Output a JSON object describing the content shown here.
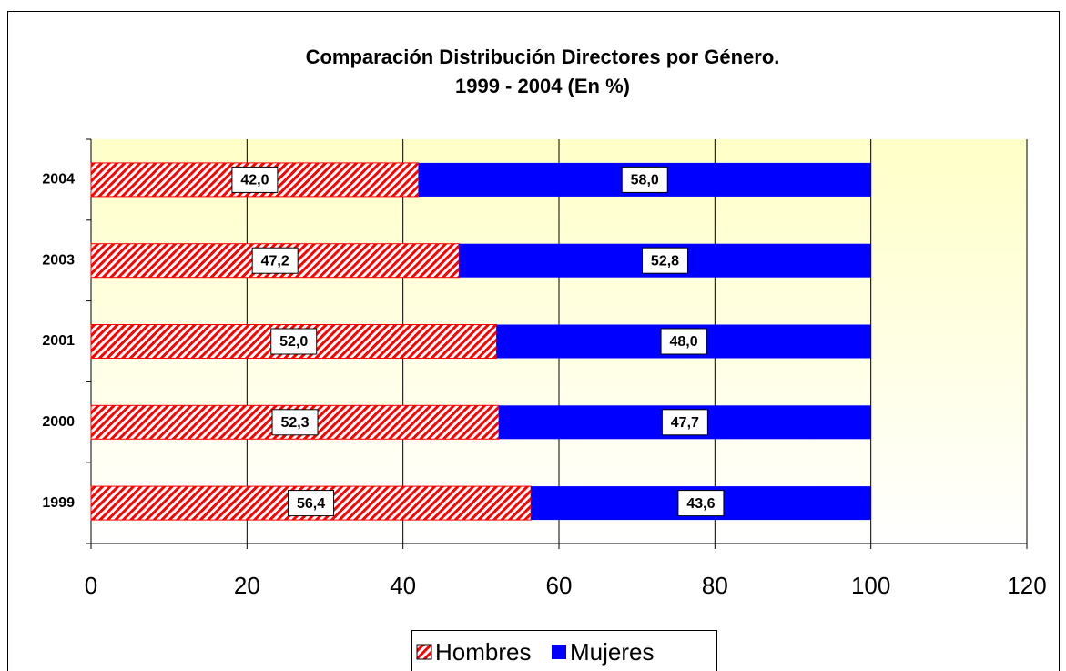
{
  "chart_data": {
    "type": "stacked_barh",
    "title": [
      "Comparación Distribución Directores por Género.",
      "1999 -  2004 (En %)"
    ],
    "categories": [
      "1999",
      "2000",
      "2001",
      "2003",
      "2004"
    ],
    "series": [
      {
        "name": "Hombres",
        "color": "#ff0000",
        "hatch": true,
        "values": [
          56.4,
          52.3,
          52.0,
          47.2,
          42.0
        ],
        "value_labels": [
          "56,4",
          "52,3",
          "52,0",
          "47,2",
          "42,0"
        ]
      },
      {
        "name": "Mujeres",
        "color": "#0000ff",
        "hatch": false,
        "values": [
          43.6,
          47.7,
          48.0,
          52.8,
          58.0
        ],
        "value_labels": [
          "43,6",
          "47,7",
          "48,0",
          "52,8",
          "58,0"
        ]
      }
    ],
    "xlim": [
      0,
      120
    ],
    "xticks": [
      0,
      20,
      40,
      60,
      80,
      100,
      120
    ],
    "grid": true,
    "legend": "bottom"
  }
}
